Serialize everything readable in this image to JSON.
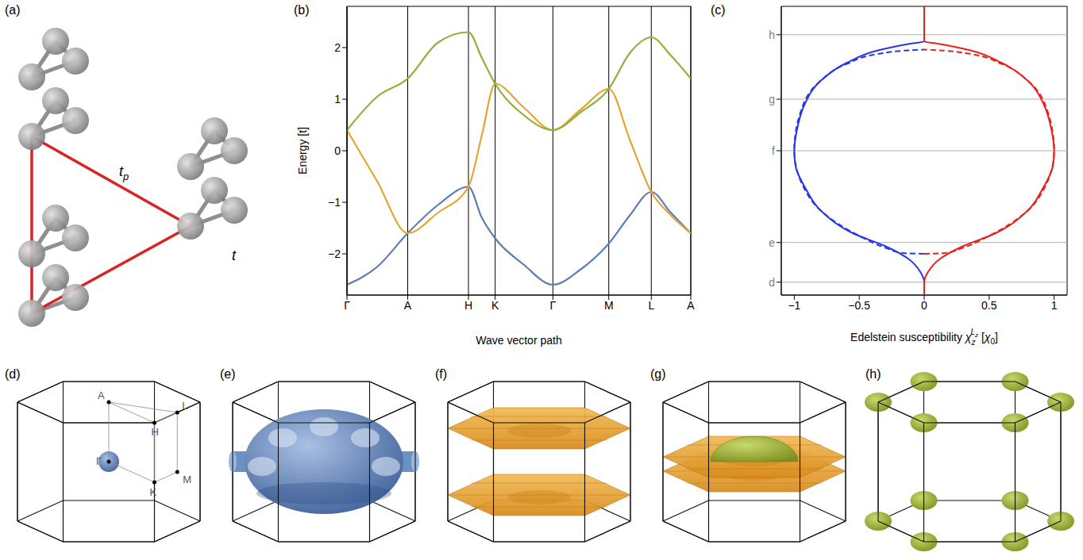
{
  "panel_labels": [
    "(a)",
    "(b)",
    "(c)",
    "(d)",
    "(e)",
    "(f)",
    "(g)",
    "(h)"
  ],
  "hopping_labels": [
    {
      "text": "t",
      "sub": "p"
    },
    {
      "text": "t"
    }
  ],
  "bz_points": [
    "A",
    "H",
    "L",
    "Γ",
    "K",
    "M"
  ],
  "chart_data": [
    {
      "type": "line",
      "x_label": "Wave vector path",
      "y_label": "Energy [t]",
      "xlim": [
        0,
        5.66
      ],
      "xticks": [
        {
          "value": 0,
          "label": "Γ"
        },
        {
          "value": 1,
          "label": "A"
        },
        {
          "value": 2,
          "label": "H"
        },
        {
          "value": 2.44,
          "label": "K"
        },
        {
          "value": 3.39,
          "label": "Γ"
        },
        {
          "value": 4.31,
          "label": "M"
        },
        {
          "value": 5.01,
          "label": "L"
        },
        {
          "value": 5.66,
          "label": "A"
        }
      ],
      "ylim": [
        -2.8,
        2.8
      ],
      "yticks": [
        {
          "value": -2,
          "label": "−2"
        },
        {
          "value": -1,
          "label": "−1"
        },
        0,
        1,
        2
      ],
      "grid": true,
      "x": [
        0,
        0.5,
        1,
        1.5,
        2,
        2.22,
        2.44,
        2.9,
        3.39,
        3.85,
        4.31,
        4.66,
        5.01,
        5.33,
        5.66
      ],
      "series": [
        {
          "color": "#5b7db1",
          "values": [
            -2.6,
            -2.25,
            -1.6,
            -1.05,
            -0.7,
            -1.3,
            -1.7,
            -2.2,
            -2.6,
            -2.3,
            -1.8,
            -1.25,
            -0.8,
            -1.2,
            -1.6
          ]
        },
        {
          "color": "#e6a532",
          "values": [
            0.4,
            -0.6,
            -1.6,
            -1.2,
            -0.7,
            0.3,
            1.3,
            0.85,
            0.4,
            0.8,
            1.2,
            0.2,
            -0.8,
            -1.25,
            -1.6
          ]
        },
        {
          "color": "#8fb13a",
          "values": [
            0.4,
            1.05,
            1.4,
            2.1,
            2.3,
            1.8,
            1.3,
            0.7,
            0.4,
            0.75,
            1.2,
            1.9,
            2.2,
            1.85,
            1.4
          ]
        }
      ]
    },
    {
      "type": "line",
      "x_label": "Edelstein susceptibility",
      "x_label_symbol": {
        "base": "χ",
        "sub": "z",
        "sup": "L",
        "sup_sub": "z",
        "unit": "χ",
        "unit_sub": "0"
      },
      "xlim": [
        -1.1,
        1.1
      ],
      "xticks": [
        {
          "value": -1,
          "label": "−1"
        },
        {
          "value": -0.5,
          "label": "−0.5"
        },
        0,
        0.5,
        1
      ],
      "ylim": [
        -2.8,
        2.8
      ],
      "yticks": [
        {
          "value": -2.55,
          "label": "d"
        },
        {
          "value": -1.78,
          "label": "e"
        },
        {
          "value": 0,
          "label": "f"
        },
        {
          "value": 1,
          "label": "g"
        },
        {
          "value": 2.25,
          "label": "h"
        }
      ],
      "grid": true,
      "series": [
        {
          "color": "#2536e6",
          "line_style": "solid",
          "x": [
            0,
            0,
            -0.03,
            -0.12,
            -0.3,
            -0.55,
            -0.78,
            -0.92,
            -0.99,
            -1.0,
            -0.98,
            -0.92,
            -0.8,
            -0.6,
            -0.35,
            -0.12,
            0,
            0
          ],
          "values": [
            -2.8,
            -2.55,
            -2.35,
            -2.1,
            -1.85,
            -1.6,
            -1.2,
            -0.7,
            -0.3,
            0,
            0.4,
            0.9,
            1.35,
            1.7,
            1.95,
            2.07,
            2.12,
            2.8
          ]
        },
        {
          "color": "#e8211c",
          "line_style": "solid",
          "x": [
            0,
            0,
            0.03,
            0.12,
            0.3,
            0.55,
            0.78,
            0.92,
            0.99,
            1.0,
            0.98,
            0.92,
            0.8,
            0.6,
            0.35,
            0.12,
            0,
            0
          ],
          "values": [
            -2.8,
            -2.55,
            -2.35,
            -2.1,
            -1.85,
            -1.6,
            -1.2,
            -0.7,
            -0.3,
            0,
            0.4,
            0.9,
            1.35,
            1.7,
            1.95,
            2.07,
            2.12,
            2.8
          ]
        },
        {
          "color": "#2536e6",
          "line_style": "dashed",
          "x": [
            0,
            -0.15,
            -0.3,
            -0.5,
            -0.78,
            -0.93,
            -1.0,
            -0.93,
            -0.8,
            -0.6,
            -0.35,
            -0.1,
            0
          ],
          "values": [
            -2.0,
            -1.99,
            -1.88,
            -1.65,
            -1.2,
            -0.7,
            0,
            0.9,
            1.35,
            1.68,
            1.88,
            1.95,
            1.96
          ]
        },
        {
          "color": "#e8211c",
          "line_style": "dashed",
          "x": [
            0,
            0.15,
            0.3,
            0.5,
            0.78,
            0.93,
            1.0,
            0.93,
            0.8,
            0.6,
            0.35,
            0.1,
            0
          ],
          "values": [
            -2.0,
            -1.99,
            -1.88,
            -1.65,
            -1.2,
            -0.7,
            0,
            0.9,
            1.35,
            1.68,
            1.88,
            1.95,
            1.96
          ]
        }
      ]
    }
  ]
}
